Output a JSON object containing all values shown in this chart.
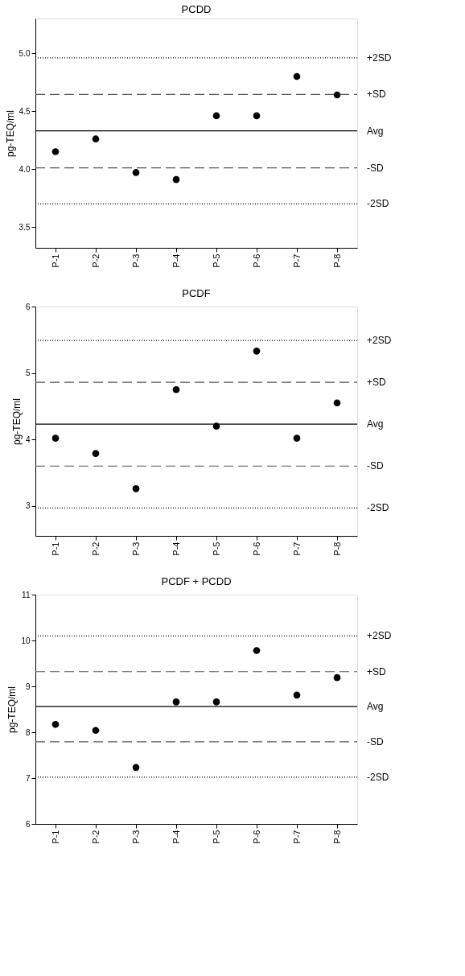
{
  "chart_data": [
    {
      "type": "scatter",
      "title": "PCDD",
      "ylabel": "pg-TEQ/ml",
      "categories": [
        "P-1",
        "P-2",
        "P-3",
        "P-4",
        "P-5",
        "P-6",
        "P-7",
        "P-8"
      ],
      "series": [
        {
          "color": "#000000",
          "values": [
            4.15,
            4.26,
            3.97,
            3.91,
            4.46,
            4.46,
            4.8,
            4.64
          ]
        }
      ],
      "ylim": [
        3.32,
        5.3
      ],
      "yticks": [
        3.5,
        {
          "value": 4,
          "label": "4.0"
        },
        4.5,
        {
          "value": 5,
          "label": "5.0"
        }
      ],
      "ref_lines": [
        {
          "axis": "y",
          "value": 4.96,
          "label": "+2SD",
          "color": "#000000",
          "line_style": "dotted"
        },
        {
          "axis": "y",
          "value": 4.645,
          "label": "+SD",
          "color": "#555555",
          "line_style": "dashed"
        },
        {
          "axis": "y",
          "value": 4.33,
          "label": "Avg",
          "color": "#000000",
          "line_style": "solid"
        },
        {
          "axis": "y",
          "value": 4.01,
          "label": "-SD",
          "color": "#555555",
          "line_style": "dashed"
        },
        {
          "axis": "y",
          "value": 3.7,
          "label": "-2SD",
          "color": "#000000",
          "line_style": "dotted"
        }
      ],
      "marker": "circle",
      "grid": false,
      "legend": false
    },
    {
      "type": "scatter",
      "title": "PCDF",
      "ylabel": "pg-TEQ/ml",
      "categories": [
        "P-1",
        "P-2",
        "P-3",
        "P-4",
        "P-5",
        "P-6",
        "P-7",
        "P-8"
      ],
      "series": [
        {
          "color": "#000000",
          "values": [
            4.02,
            3.79,
            3.26,
            4.75,
            4.2,
            5.33,
            4.02,
            4.55
          ]
        }
      ],
      "ylim": [
        2.55,
        6
      ],
      "yticks": [
        3,
        4,
        5,
        6
      ],
      "ref_lines": [
        {
          "axis": "y",
          "value": 5.49,
          "label": "+2SD",
          "color": "#000000",
          "line_style": "dotted"
        },
        {
          "axis": "y",
          "value": 4.86,
          "label": "+SD",
          "color": "#555555",
          "line_style": "dashed"
        },
        {
          "axis": "y",
          "value": 4.23,
          "label": "Avg",
          "color": "#000000",
          "line_style": "solid"
        },
        {
          "axis": "y",
          "value": 3.6,
          "label": "-SD",
          "color": "#555555",
          "line_style": "dashed"
        },
        {
          "axis": "y",
          "value": 2.97,
          "label": "-2SD",
          "color": "#000000",
          "line_style": "dotted"
        }
      ],
      "marker": "circle",
      "grid": false,
      "legend": false
    },
    {
      "type": "scatter",
      "title": "PCDF + PCDD",
      "ylabel": "pg-TEQ/ml",
      "categories": [
        "P-1",
        "P-2",
        "P-3",
        "P-4",
        "P-5",
        "P-6",
        "P-7",
        "P-8"
      ],
      "series": [
        {
          "color": "#000000",
          "values": [
            8.17,
            8.04,
            7.23,
            8.66,
            8.66,
            9.78,
            8.81,
            9.19
          ]
        }
      ],
      "ylim": [
        6,
        11
      ],
      "yticks": [
        6,
        7,
        8,
        9,
        10,
        11
      ],
      "ref_lines": [
        {
          "axis": "y",
          "value": 10.1,
          "label": "+2SD",
          "color": "#000000",
          "line_style": "dotted"
        },
        {
          "axis": "y",
          "value": 9.32,
          "label": "+SD",
          "color": "#555555",
          "line_style": "dashed"
        },
        {
          "axis": "y",
          "value": 8.56,
          "label": "Avg",
          "color": "#000000",
          "line_style": "solid"
        },
        {
          "axis": "y",
          "value": 7.79,
          "label": "-SD",
          "color": "#555555",
          "line_style": "dashed"
        },
        {
          "axis": "y",
          "value": 7.02,
          "label": "-2SD",
          "color": "#000000",
          "line_style": "dotted"
        }
      ],
      "marker": "circle",
      "grid": false,
      "legend": false
    }
  ]
}
